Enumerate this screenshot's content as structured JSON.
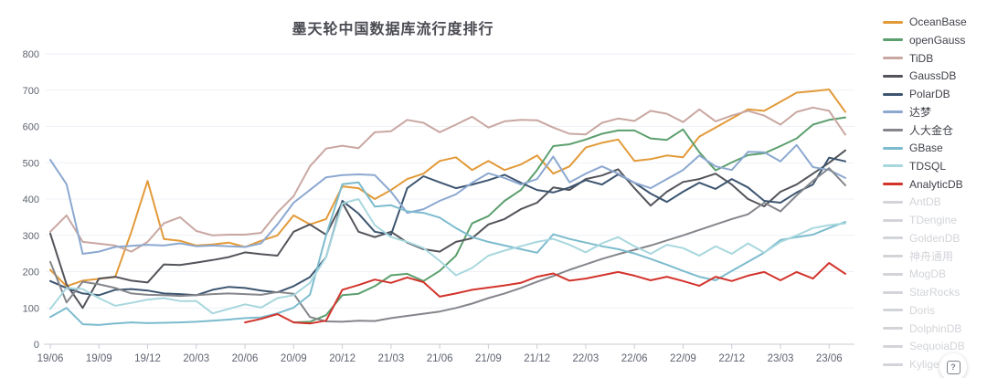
{
  "title": "墨天轮中国数据库流行度排行",
  "help_button": {
    "glyph": "?"
  },
  "chart_data": {
    "type": "line",
    "title": "墨天轮中国数据库流行度排行",
    "xlabel": "",
    "ylabel": "",
    "ylim": [
      0,
      800
    ],
    "y_ticks": [
      0,
      100,
      200,
      300,
      400,
      500,
      600,
      700,
      800
    ],
    "grid": true,
    "legend_position": "right",
    "x_months_start": "2019-06",
    "x_months_end": "2023-07",
    "point_count": 50,
    "x_tick_label_every_months": 3,
    "x_tick_labels": [
      "19/06",
      "19/09",
      "19/12",
      "20/03",
      "20/06",
      "20/09",
      "20/12",
      "21/03",
      "21/06",
      "21/09",
      "21/12",
      "22/03",
      "22/06",
      "22/09",
      "22/12",
      "23/03",
      "23/06"
    ],
    "series": [
      {
        "id": "oceanbase",
        "name": "OceanBase",
        "color": "#E29A39",
        "values": [
          205,
          160,
          175,
          180,
          185,
          310,
          450,
          290,
          285,
          272,
          275,
          280,
          268,
          285,
          300,
          355,
          330,
          345,
          435,
          430,
          400,
          425,
          455,
          470,
          505,
          515,
          480,
          505,
          480,
          495,
          520,
          470,
          490,
          542,
          555,
          564,
          505,
          510,
          520,
          515,
          572,
          597,
          622,
          647,
          643,
          668,
          693,
          697,
          702,
          640
        ]
      },
      {
        "id": "opengauss",
        "name": "openGauss",
        "color": "#5C9F6E",
        "values": [
          null,
          null,
          null,
          null,
          null,
          null,
          null,
          null,
          null,
          null,
          null,
          null,
          null,
          null,
          null,
          60,
          62,
          80,
          135,
          139,
          160,
          190,
          194,
          174,
          202,
          244,
          333,
          353,
          395,
          425,
          480,
          546,
          551,
          564,
          580,
          589,
          589,
          567,
          563,
          592,
          529,
          479,
          501,
          521,
          526,
          546,
          567,
          605,
          618,
          625
        ]
      },
      {
        "id": "tidb",
        "name": "TiDB",
        "color": "#C9A7A1",
        "values": [
          310,
          355,
          282,
          277,
          272,
          255,
          282,
          333,
          350,
          312,
          300,
          302,
          302,
          307,
          363,
          408,
          490,
          539,
          547,
          540,
          584,
          587,
          618,
          610,
          584,
          605,
          627,
          597,
          614,
          618,
          617,
          597,
          580,
          578,
          610,
          622,
          615,
          643,
          635,
          612,
          647,
          614,
          630,
          643,
          630,
          605,
          640,
          652,
          643,
          577
        ]
      },
      {
        "id": "gaussdb",
        "name": "GaussDB",
        "color": "#53545A",
        "values": [
          305,
          165,
          100,
          181,
          186,
          175,
          170,
          220,
          218,
          225,
          232,
          240,
          253,
          248,
          244,
          310,
          330,
          302,
          390,
          310,
          295,
          310,
          280,
          262,
          255,
          282,
          292,
          330,
          345,
          372,
          390,
          432,
          425,
          455,
          465,
          482,
          430,
          382,
          420,
          447,
          455,
          470,
          440,
          400,
          380,
          420,
          440,
          470,
          500,
          534
        ]
      },
      {
        "id": "polardb",
        "name": "PolarDB",
        "color": "#3D5570",
        "values": [
          174,
          155,
          140,
          135,
          150,
          152,
          148,
          140,
          138,
          135,
          150,
          158,
          155,
          148,
          143,
          160,
          185,
          240,
          395,
          360,
          310,
          302,
          430,
          463,
          446,
          430,
          440,
          452,
          467,
          445,
          425,
          418,
          432,
          452,
          440,
          468,
          445,
          415,
          392,
          420,
          445,
          428,
          455,
          432,
          395,
          390,
          418,
          440,
          514,
          504
        ]
      },
      {
        "id": "dameng",
        "name": "达梦",
        "color": "#8CA8D0",
        "values": [
          508,
          441,
          249,
          255,
          268,
          271,
          274,
          272,
          278,
          270,
          272,
          270,
          268,
          278,
          330,
          390,
          425,
          460,
          466,
          468,
          466,
          420,
          362,
          372,
          395,
          413,
          445,
          471,
          458,
          440,
          455,
          517,
          446,
          470,
          490,
          470,
          445,
          430,
          455,
          480,
          520,
          490,
          480,
          530,
          529,
          504,
          549,
          488,
          480,
          458
        ]
      },
      {
        "id": "renda-jincang",
        "name": "人大金仓",
        "color": "#84868B",
        "values": [
          227,
          115,
          172,
          165,
          155,
          140,
          136,
          135,
          133,
          135,
          138,
          140,
          138,
          136,
          144,
          139,
          75,
          63,
          62,
          65,
          64,
          72,
          78,
          84,
          90,
          100,
          112,
          127,
          140,
          155,
          172,
          188,
          205,
          220,
          235,
          248,
          260,
          272,
          286,
          300,
          315,
          330,
          345,
          358,
          390,
          366,
          410,
          450,
          485,
          438
        ]
      },
      {
        "id": "gbase",
        "name": "GBase",
        "color": "#7CBBCE",
        "values": [
          75,
          100,
          55,
          53,
          57,
          60,
          58,
          59,
          60,
          62,
          65,
          68,
          72,
          74,
          85,
          101,
          136,
          300,
          441,
          446,
          379,
          383,
          366,
          362,
          349,
          320,
          295,
          282,
          272,
          262,
          252,
          303,
          290,
          280,
          270,
          262,
          250,
          235,
          219,
          202,
          186,
          176,
          202,
          227,
          252,
          287,
          295,
          302,
          320,
          337
        ]
      },
      {
        "id": "tdsql",
        "name": "TDSQL",
        "color": "#A8D7DE",
        "values": [
          97,
          155,
          152,
          127,
          106,
          114,
          123,
          127,
          119,
          119,
          85,
          97,
          110,
          101,
          127,
          135,
          169,
          240,
          388,
          400,
          328,
          295,
          282,
          265,
          230,
          190,
          210,
          244,
          258,
          270,
          282,
          290,
          274,
          253,
          278,
          295,
          270,
          249,
          274,
          265,
          244,
          270,
          249,
          278,
          252,
          282,
          300,
          320,
          328,
          333
        ]
      },
      {
        "id": "analyticdb",
        "name": "AnalyticDB",
        "color": "#D2342C",
        "values": [
          null,
          null,
          null,
          null,
          null,
          null,
          null,
          null,
          null,
          null,
          null,
          null,
          60,
          70,
          83,
          60,
          57,
          65,
          150,
          163,
          178,
          169,
          184,
          171,
          131,
          140,
          150,
          156,
          162,
          169,
          186,
          195,
          175,
          181,
          190,
          199,
          189,
          176,
          186,
          174,
          161,
          186,
          174,
          189,
          199,
          176,
          199,
          181,
          224,
          194
        ]
      }
    ],
    "disabled_series": [
      {
        "id": "antdb",
        "name": "AntDB"
      },
      {
        "id": "tdengine",
        "name": "TDengine"
      },
      {
        "id": "goldendb",
        "name": "GoldenDB"
      },
      {
        "id": "shenzhou-tongyong",
        "name": "神舟通用"
      },
      {
        "id": "mogdb",
        "name": "MogDB"
      },
      {
        "id": "starrocks",
        "name": "StarRocks"
      },
      {
        "id": "doris",
        "name": "Doris"
      },
      {
        "id": "dolphindb",
        "name": "DolphinDB"
      },
      {
        "id": "sequoiadb",
        "name": "SequoiaDB"
      },
      {
        "id": "kyligence",
        "name": "Kyligence"
      }
    ],
    "disabled_color": "#D2D4D8",
    "style": {
      "grid_color": "#EDF1F7",
      "axis_color": "#C8CBD0",
      "tick_label_color": "#5E6370",
      "title_color": "#4A4B52"
    }
  }
}
